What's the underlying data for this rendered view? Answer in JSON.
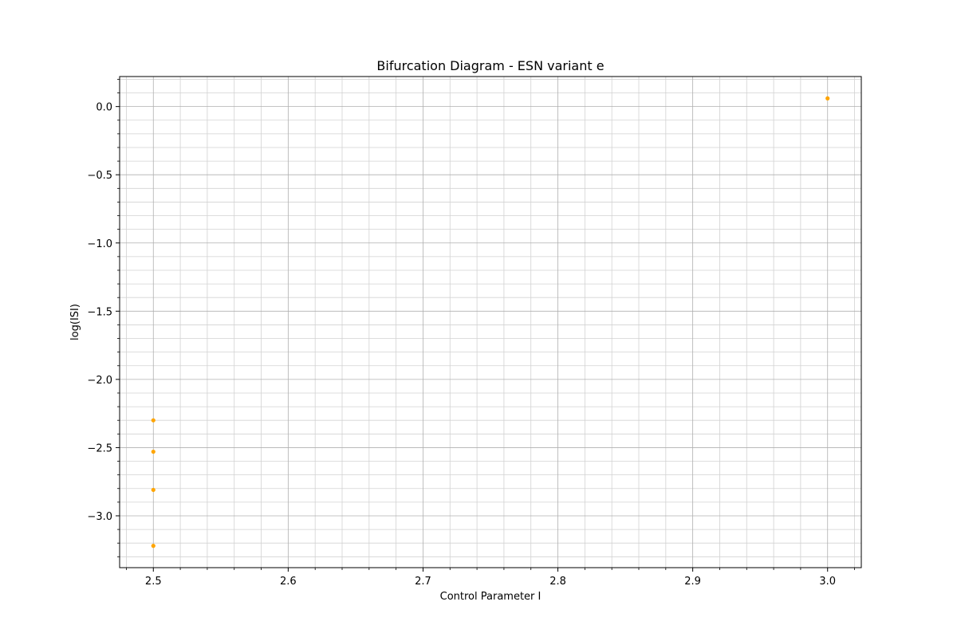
{
  "chart_data": {
    "type": "scatter",
    "title": "Bifurcation Diagram - ESN variant e",
    "xlabel": "Control Parameter I",
    "ylabel": "log(ISI)",
    "xlim": [
      2.475,
      3.025
    ],
    "ylim": [
      -3.38,
      0.22
    ],
    "xticks": [
      2.5,
      2.6,
      2.7,
      2.8,
      2.9,
      3.0
    ],
    "xtick_labels": [
      "2.5",
      "2.6",
      "2.7",
      "2.8",
      "2.9",
      "3.0"
    ],
    "xminor_step": 0.02,
    "yticks": [
      0.0,
      -0.5,
      -1.0,
      -1.5,
      -2.0,
      -2.5,
      -3.0
    ],
    "ytick_labels": [
      "0.0",
      "−0.5",
      "−1.0",
      "−1.5",
      "−2.0",
      "−2.5",
      "−3.0"
    ],
    "yminor_step": 0.1,
    "grid": true,
    "grid_minor": true,
    "legend": false,
    "marker_color": "#ffa500",
    "points": [
      {
        "x": 2.5,
        "y": -2.3
      },
      {
        "x": 2.5,
        "y": -2.53
      },
      {
        "x": 2.5,
        "y": -2.81
      },
      {
        "x": 2.5,
        "y": -3.22
      },
      {
        "x": 3.0,
        "y": 0.06
      }
    ]
  }
}
